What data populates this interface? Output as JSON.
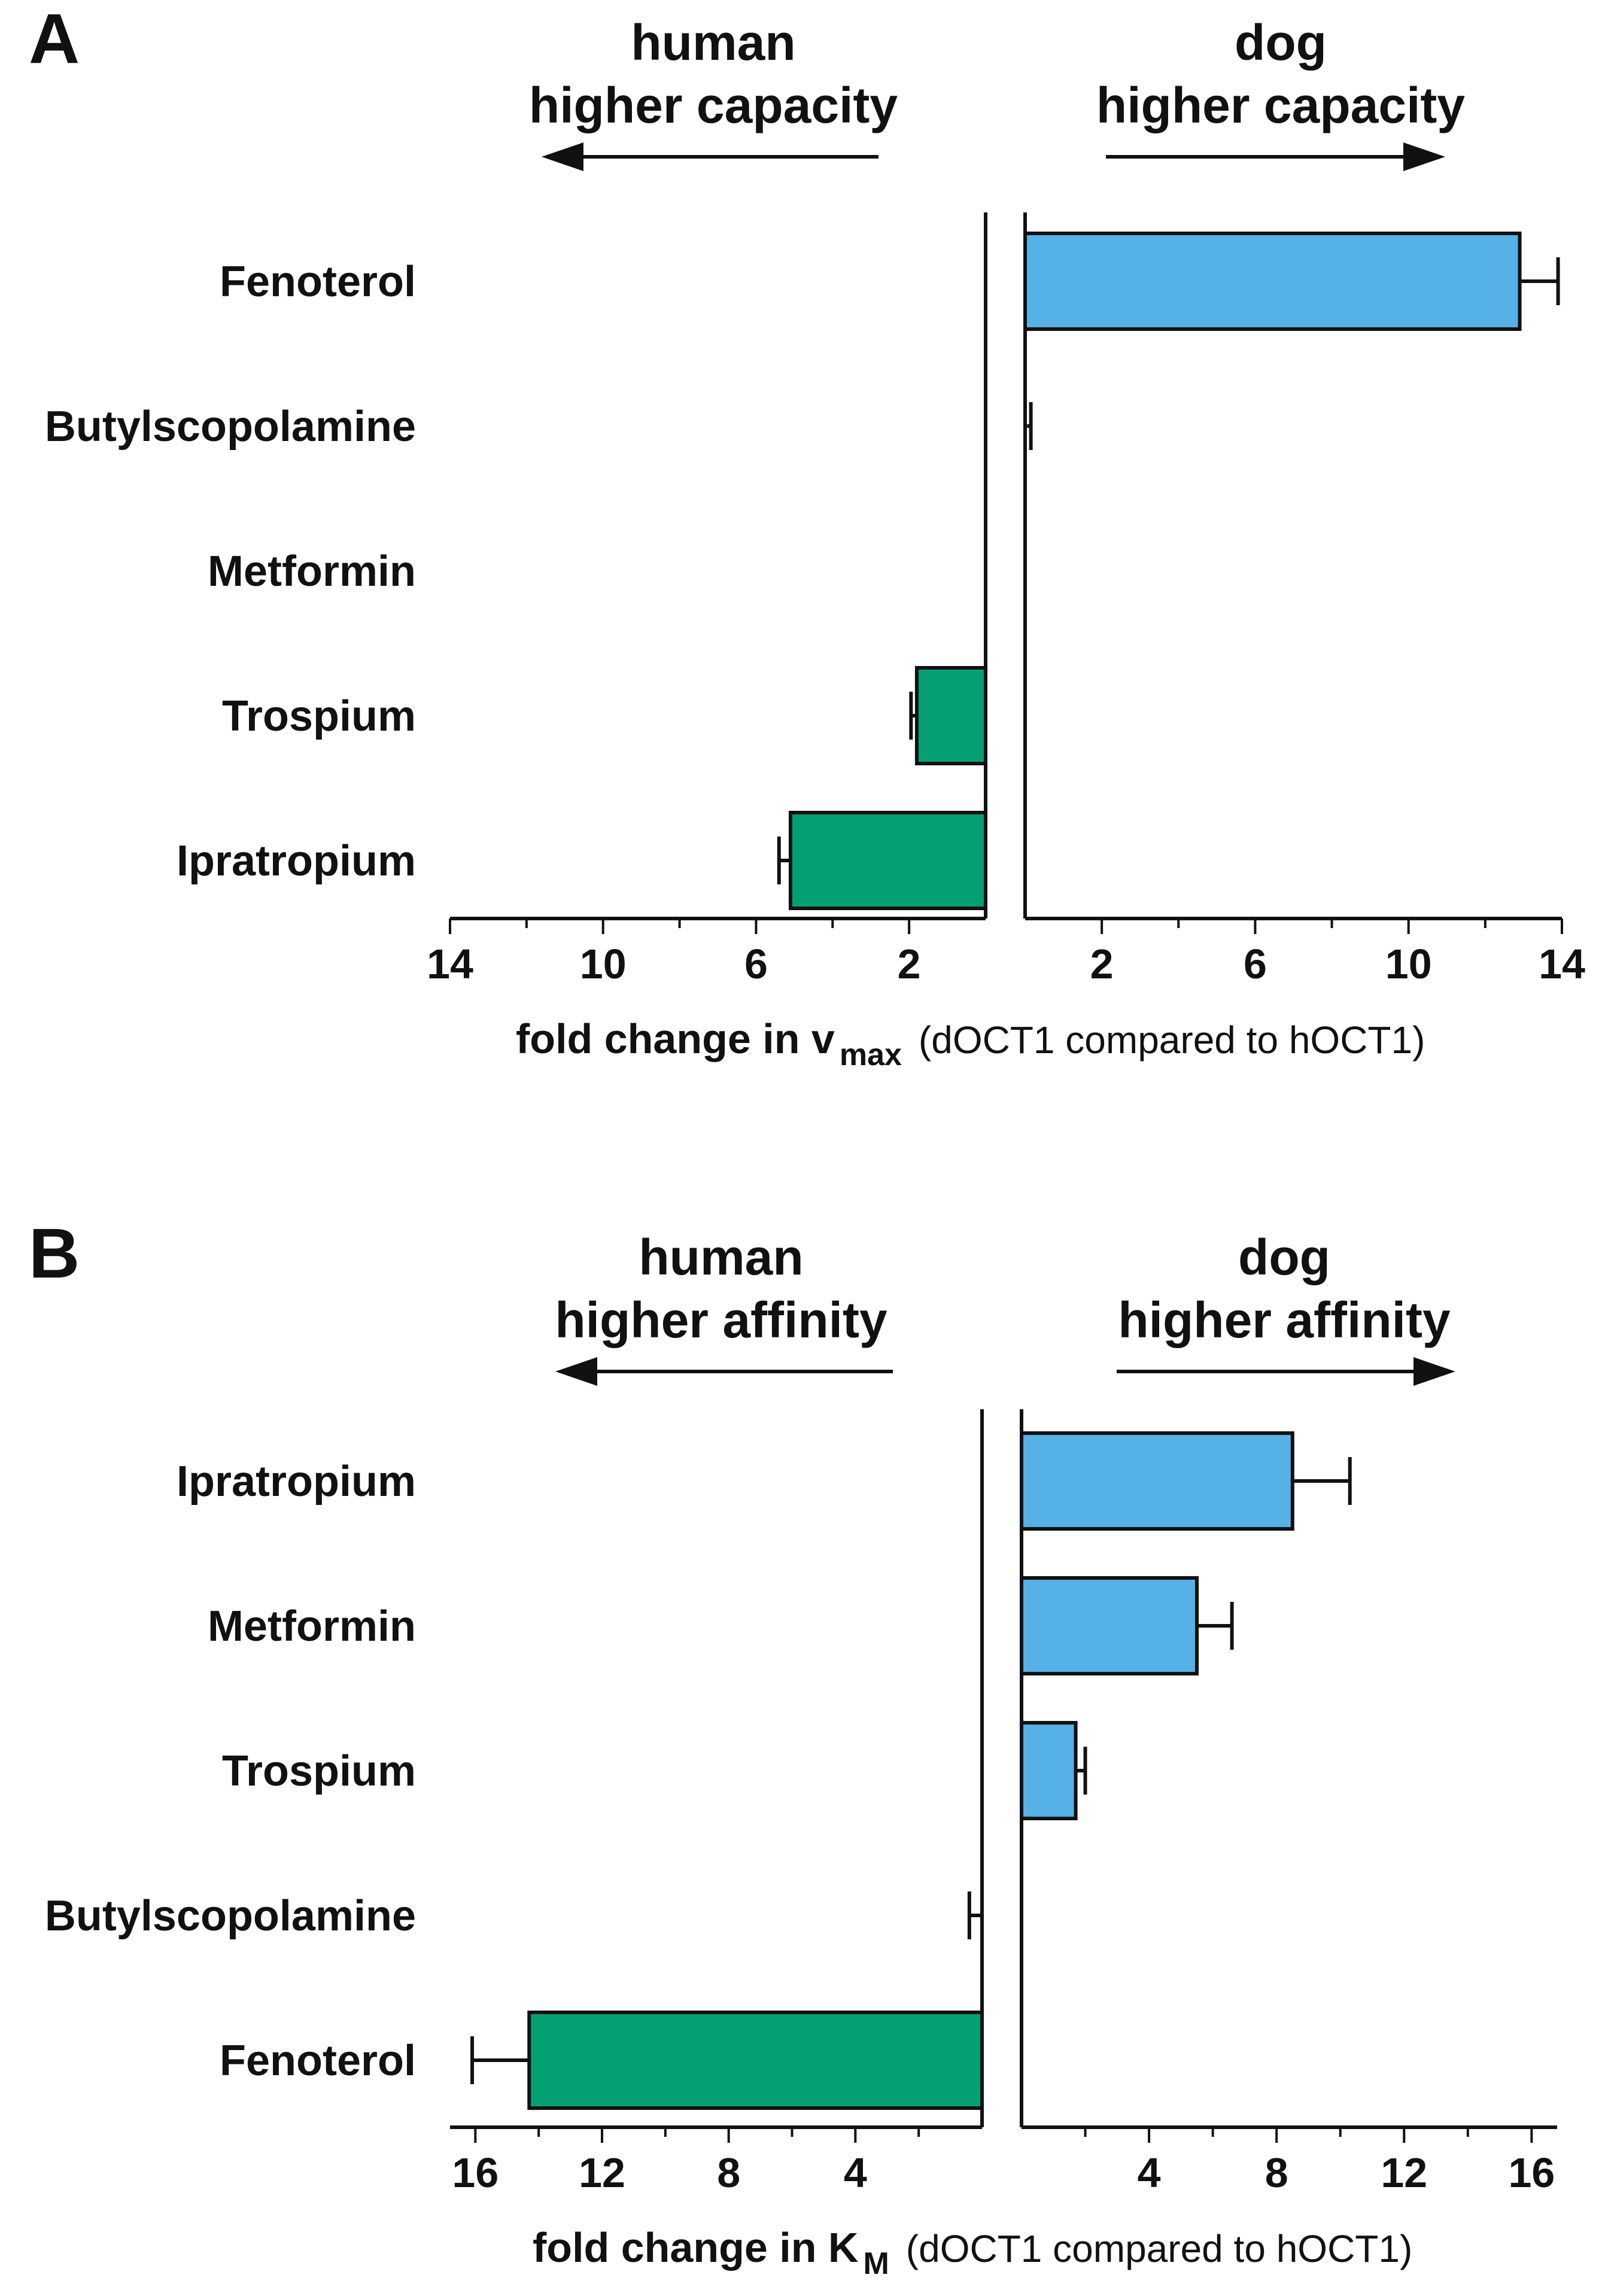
{
  "colors": {
    "human": "#04A074",
    "dog": "#55B1E6",
    "axis": "#111111"
  },
  "chart_data": [
    {
      "type": "bar",
      "orientation": "horizontal-diverging",
      "panel_label": "A",
      "header": {
        "left_group": "human",
        "left_sub": "higher capacity",
        "right_group": "dog",
        "right_sub": "higher capacity"
      },
      "categories": [
        "Fenoterol",
        "Butylscopolamine",
        "Metformin",
        "Trospium",
        "Ipratropium"
      ],
      "series": [
        {
          "name": "fold change in vmax",
          "direction": [
            "dog",
            "dog",
            "none",
            "human",
            "human"
          ],
          "values": [
            12.9,
            0.05,
            0,
            1.8,
            5.1
          ],
          "errors": [
            1.0,
            0.1,
            0,
            0.15,
            0.3
          ]
        }
      ],
      "xlim_left": [
        14,
        0
      ],
      "xlim_right": [
        0,
        14
      ],
      "ticks_left": [
        14,
        10,
        6,
        2
      ],
      "ticks_right": [
        2,
        6,
        10,
        14
      ],
      "tick_labels_left": [
        "14",
        "10",
        "6",
        "2"
      ],
      "tick_labels_right": [
        "2",
        "6",
        "10",
        "14"
      ],
      "xlabel_main": "fold change in v",
      "xlabel_sub": "max",
      "xlabel_note": "(dOCT1 compared to hOCT1)"
    },
    {
      "type": "bar",
      "orientation": "horizontal-diverging",
      "panel_label": "B",
      "header": {
        "left_group": "human",
        "left_sub": "higher affinity",
        "right_group": "dog",
        "right_sub": "higher affinity"
      },
      "categories": [
        "Ipratropium",
        "Metformin",
        "Trospium",
        "Butylscopolamine",
        "Fenoterol"
      ],
      "series": [
        {
          "name": "fold change in KM",
          "direction": [
            "dog",
            "dog",
            "dog",
            "human",
            "human"
          ],
          "values": [
            8.5,
            5.5,
            1.7,
            0.0,
            14.3
          ],
          "errors": [
            1.8,
            1.1,
            0.3,
            0.4,
            1.8
          ]
        }
      ],
      "xlim_left": [
        16.8,
        0
      ],
      "xlim_right": [
        0,
        16.8
      ],
      "ticks_left": [
        16,
        12,
        8,
        4
      ],
      "ticks_right": [
        4,
        8,
        12,
        16
      ],
      "tick_labels_left": [
        "16",
        "12",
        "8",
        "4"
      ],
      "tick_labels_right": [
        "4",
        "8",
        "12",
        "16"
      ],
      "xlabel_main": "fold change in K",
      "xlabel_sub": "M",
      "xlabel_note": "(dOCT1 compared to hOCT1)"
    }
  ]
}
